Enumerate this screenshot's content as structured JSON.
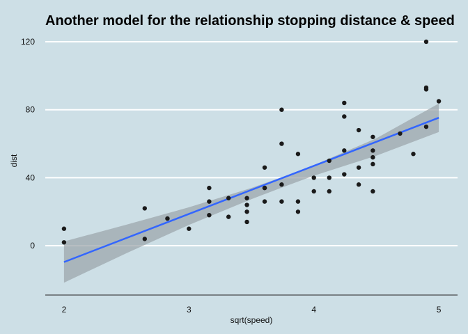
{
  "chart_data": {
    "type": "scatter",
    "title": "Another model for the relationship stopping distance & speed",
    "xlabel": "sqrt(speed)",
    "ylabel": "dist",
    "xlim": [
      1.85,
      5.15
    ],
    "ylim": [
      -29,
      129
    ],
    "xticks": [
      "2",
      "3",
      "4",
      "5"
    ],
    "yticks": [
      "0",
      "40",
      "80",
      "120"
    ],
    "grid": "horizontal-major",
    "colors": {
      "background": "#cddfe6",
      "points": "#1a1a1a",
      "fit_line": "#3366ff",
      "ribbon": "#9aa3a8",
      "grid": "#ffffff"
    },
    "points": [
      {
        "x": 2.0,
        "y": 2
      },
      {
        "x": 2.0,
        "y": 10
      },
      {
        "x": 2.646,
        "y": 4
      },
      {
        "x": 2.646,
        "y": 22
      },
      {
        "x": 2.828,
        "y": 16
      },
      {
        "x": 3.0,
        "y": 10
      },
      {
        "x": 3.162,
        "y": 18
      },
      {
        "x": 3.162,
        "y": 26
      },
      {
        "x": 3.162,
        "y": 34
      },
      {
        "x": 3.317,
        "y": 17
      },
      {
        "x": 3.317,
        "y": 28
      },
      {
        "x": 3.464,
        "y": 14
      },
      {
        "x": 3.464,
        "y": 20
      },
      {
        "x": 3.464,
        "y": 24
      },
      {
        "x": 3.464,
        "y": 28
      },
      {
        "x": 3.606,
        "y": 26
      },
      {
        "x": 3.606,
        "y": 34
      },
      {
        "x": 3.606,
        "y": 34
      },
      {
        "x": 3.606,
        "y": 46
      },
      {
        "x": 3.742,
        "y": 26
      },
      {
        "x": 3.742,
        "y": 36
      },
      {
        "x": 3.742,
        "y": 60
      },
      {
        "x": 3.742,
        "y": 80
      },
      {
        "x": 3.873,
        "y": 20
      },
      {
        "x": 3.873,
        "y": 26
      },
      {
        "x": 3.873,
        "y": 54
      },
      {
        "x": 4.0,
        "y": 32
      },
      {
        "x": 4.0,
        "y": 40
      },
      {
        "x": 4.123,
        "y": 32
      },
      {
        "x": 4.123,
        "y": 40
      },
      {
        "x": 4.123,
        "y": 50
      },
      {
        "x": 4.243,
        "y": 42
      },
      {
        "x": 4.243,
        "y": 56
      },
      {
        "x": 4.243,
        "y": 76
      },
      {
        "x": 4.243,
        "y": 84
      },
      {
        "x": 4.359,
        "y": 36
      },
      {
        "x": 4.359,
        "y": 46
      },
      {
        "x": 4.359,
        "y": 68
      },
      {
        "x": 4.472,
        "y": 32
      },
      {
        "x": 4.472,
        "y": 48
      },
      {
        "x": 4.472,
        "y": 52
      },
      {
        "x": 4.472,
        "y": 56
      },
      {
        "x": 4.472,
        "y": 64
      },
      {
        "x": 4.69,
        "y": 66
      },
      {
        "x": 4.796,
        "y": 54
      },
      {
        "x": 4.899,
        "y": 70
      },
      {
        "x": 4.899,
        "y": 92
      },
      {
        "x": 4.899,
        "y": 93
      },
      {
        "x": 4.899,
        "y": 120
      },
      {
        "x": 5.0,
        "y": 85
      }
    ],
    "fit_line": {
      "x": [
        2.0,
        5.0
      ],
      "y": [
        -9.6,
        75.3
      ]
    },
    "confidence_band": {
      "x": [
        2.0,
        2.5,
        3.0,
        3.5,
        3.75,
        4.0,
        4.5,
        5.0
      ],
      "lower": [
        -21.7,
        -4.4,
        12.2,
        27.4,
        34.4,
        41.2,
        53.0,
        66.9
      ],
      "upper": [
        2.5,
        12.4,
        22.6,
        34.0,
        40.5,
        47.4,
        63.2,
        83.7
      ]
    }
  }
}
